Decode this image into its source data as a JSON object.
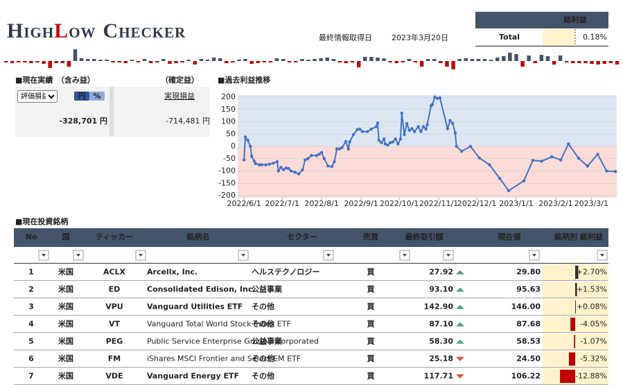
{
  "header": {
    "title": [
      "High",
      "Low",
      "Checker"
    ],
    "date_label": "最終情報取得日",
    "date": "2023年3月20日"
  },
  "summary": {
    "header": "総利益",
    "label": "Total",
    "value": "0.18%"
  },
  "sparkline": {
    "values": [
      -2,
      -3,
      -2,
      -2,
      -3,
      -2,
      -4,
      -10,
      -3,
      -3,
      -8,
      17,
      4,
      3,
      3,
      2,
      2,
      -2,
      -2,
      -3,
      2,
      -2,
      3,
      -3,
      -2,
      3,
      -4,
      -3,
      -2,
      2,
      -5,
      3,
      2,
      5,
      4,
      -3,
      -2,
      2,
      3,
      -4,
      -3,
      -2,
      -2,
      4,
      3,
      -2,
      -2,
      3,
      2,
      3,
      4,
      5,
      3,
      -2,
      -3,
      -2,
      -9,
      6,
      6,
      5,
      4,
      -2,
      -3,
      -2,
      3,
      -2,
      -8,
      3,
      3,
      -3,
      -8,
      -12,
      3,
      4,
      3,
      3,
      3,
      2,
      5,
      7,
      12,
      10,
      -8,
      8,
      -3,
      9,
      7,
      -5,
      8,
      -2,
      -3,
      -3,
      -3,
      -4,
      -5,
      -4,
      -3,
      -5
    ]
  },
  "performance": {
    "title": "■現在実績　（含み益）",
    "realized_title": "（確定益）",
    "select": "評価損益",
    "toggle": [
      "円",
      "%"
    ],
    "link": "実現損益",
    "unrealized": "-328,701 円",
    "realized": "-714,481 円"
  },
  "chart_data": {
    "type": "line",
    "title": "■過去利益推移",
    "x": [
      "2022/6/1",
      "2022/6/2",
      "2022/6/4",
      "2022/6/6",
      "2022/6/7",
      "2022/6/9",
      "2022/6/10",
      "2022/6/13",
      "2022/6/15",
      "2022/6/18",
      "2022/6/21",
      "2022/6/24",
      "2022/6/27",
      "2022/6/28",
      "2022/6/30",
      "2022/7/2",
      "2022/7/4",
      "2022/7/6",
      "2022/7/8",
      "2022/7/11",
      "2022/7/14",
      "2022/7/17",
      "2022/7/19",
      "2022/7/21",
      "2022/7/24",
      "2022/7/28",
      "2022/7/30",
      "2022/8/1",
      "2022/8/3",
      "2022/8/6",
      "2022/8/9",
      "2022/8/11",
      "2022/8/13",
      "2022/8/15",
      "2022/8/17",
      "2022/8/20",
      "2022/8/22",
      "2022/8/23",
      "2022/8/26",
      "2022/8/29",
      "2022/8/31",
      "2022/9/2",
      "2022/9/6",
      "2022/9/9",
      "2022/9/13",
      "2022/9/14",
      "2022/9/15",
      "2022/9/17",
      "2022/9/19",
      "2022/9/20",
      "2022/9/22",
      "2022/9/24",
      "2022/9/26",
      "2022/9/28",
      "2022/9/30",
      "2022/10/2",
      "2022/10/3",
      "2022/10/5",
      "2022/10/7",
      "2022/10/9",
      "2022/10/11",
      "2022/10/13",
      "2022/10/16",
      "2022/10/18",
      "2022/10/20",
      "2022/10/22",
      "2022/10/23",
      "2022/10/26",
      "2022/10/27",
      "2022/10/29",
      "2022/10/31",
      "2022/11/2",
      "2022/11/8",
      "2022/11/10",
      "2022/11/12",
      "2022/11/14",
      "2022/11/15",
      "2022/11/19",
      "2022/11/26",
      "2022/12/3",
      "2022/12/11",
      "2022/12/19",
      "2022/12/26",
      "2023/1/7",
      "2023/1/14",
      "2023/1/21",
      "2023/1/29",
      "2023/2/5",
      "2023/2/11",
      "2023/2/19",
      "2023/2/26",
      "2023/3/6",
      "2023/3/13",
      "2023/3/20"
    ],
    "series": [
      {
        "color": "#4472c4",
        "values": [
          -55,
          38,
          25,
          0,
          -40,
          -60,
          -70,
          -75,
          -75,
          -75,
          -72,
          -68,
          -62,
          -100,
          -85,
          -95,
          -88,
          -90,
          -100,
          -105,
          -112,
          -95,
          -55,
          -50,
          -37,
          -37,
          -32,
          -25,
          -50,
          -80,
          -82,
          -62,
          -10,
          -10,
          -5,
          20,
          -10,
          18,
          48,
          68,
          70,
          60,
          60,
          70,
          80,
          95,
          25,
          15,
          30,
          10,
          5,
          15,
          18,
          30,
          10,
          30,
          135,
          48,
          92,
          65,
          72,
          60,
          80,
          60,
          80,
          70,
          88,
          165,
          170,
          200,
          195,
          197,
          72,
          105,
          93,
          55,
          0,
          -20,
          0,
          -47,
          -75,
          -130,
          -180,
          -140,
          -57,
          -60,
          -42,
          -55,
          10,
          -48,
          -80,
          -32,
          -100,
          -102
        ]
      }
    ],
    "xlim": [
      "2022/5/27",
      "2023/3/21"
    ],
    "ylim": [
      -200,
      200
    ],
    "yticks": [
      -200,
      -150,
      -100,
      -50,
      0,
      50,
      100,
      150,
      200
    ],
    "xticks": [
      "2022/6/1",
      "2022/7/1",
      "2022/8/1",
      "2022/9/1",
      "2022/10/1",
      "2022/11/1",
      "2022/12/1",
      "2023/1/1",
      "2023/2/1",
      "2023/3/1"
    ],
    "grid": true
  },
  "holdings": {
    "title": "■現在投資銘柄",
    "columns": [
      "No",
      "国",
      "ティッカー",
      "銘柄名",
      "セクター",
      "売買",
      "最終取引額",
      "現在値",
      "銘柄別 総利益"
    ],
    "rows": [
      [
        1,
        "米国",
        "ACLX",
        "Arcellx, Inc.",
        "ヘルステクノロジー",
        "買",
        "27.92",
        "29.80",
        "+2.70%"
      ],
      [
        2,
        "米国",
        "ED",
        "Consolidated Edison, Inc.",
        "公益事業",
        "買",
        "93.10",
        "95.63",
        "+1.53%"
      ],
      [
        3,
        "米国",
        "VPU",
        "Vanguard Utilities ETF",
        "その他",
        "買",
        "142.90",
        "146.00",
        "+0.08%"
      ],
      [
        4,
        "米国",
        "VT",
        "Vanguard Total World Stock Index ETF",
        "その他",
        "買",
        "87.10",
        "87.68",
        "-4.05%"
      ],
      [
        5,
        "米国",
        "PEG",
        "Public Service Enterprise Group Incorporated",
        "公益事業",
        "買",
        "58.30",
        "58.53",
        "-1.07%"
      ],
      [
        6,
        "米国",
        "FM",
        "iShares MSCI Frontier and Select EM ETF",
        "その他",
        "買",
        "25.18",
        "24.50",
        "-5.32%"
      ],
      [
        7,
        "米国",
        "VDE",
        "Vanguard Energy ETF",
        "その他",
        "買",
        "117.71",
        "106.22",
        "-12.88%"
      ]
    ]
  }
}
